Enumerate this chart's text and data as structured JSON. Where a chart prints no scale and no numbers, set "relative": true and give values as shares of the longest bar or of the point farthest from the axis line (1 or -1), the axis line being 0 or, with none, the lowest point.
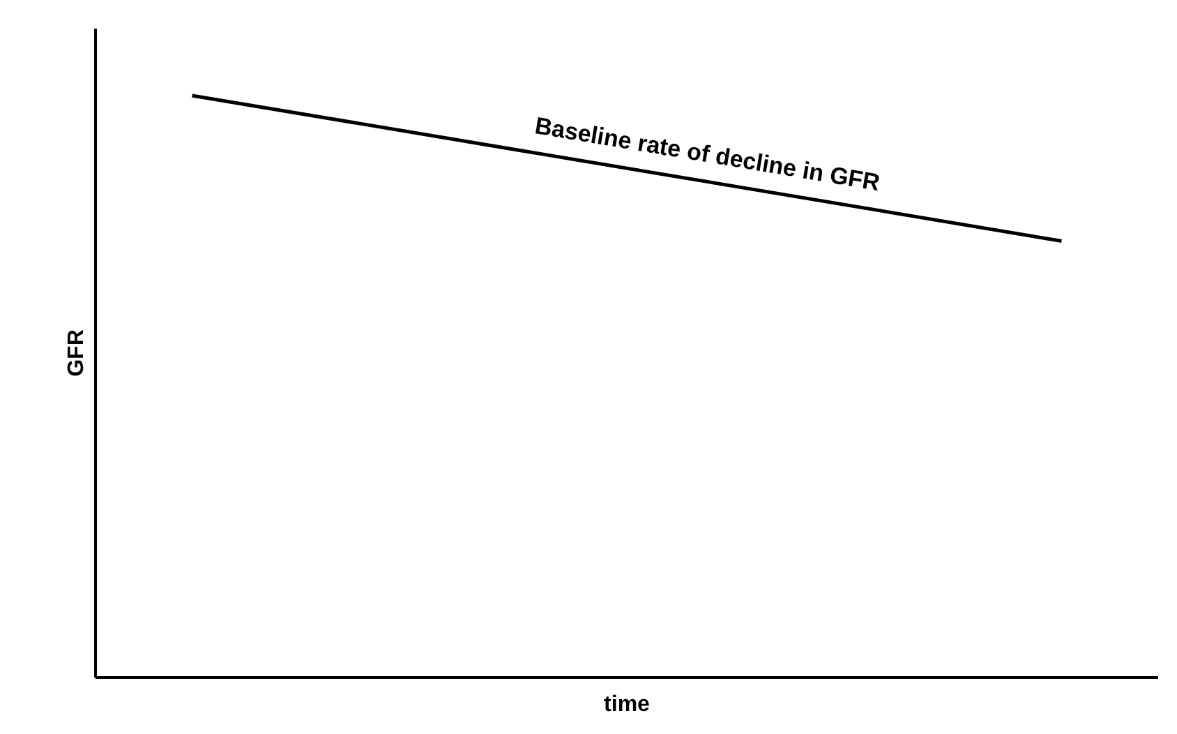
{
  "chart_data": {
    "type": "line",
    "relative": true,
    "xlabel": "time",
    "ylabel": "GFR",
    "categories": [
      null,
      null,
      null,
      null,
      null,
      null,
      null,
      null,
      null,
      null,
      null,
      null
    ],
    "series": [
      {
        "color": "#000000",
        "values": [
          null,
          1,
          null,
          null,
          null,
          null,
          null,
          null,
          null,
          null,
          0.75,
          null
        ]
      }
    ],
    "annotations": [
      "Baseline rate of decline in GFR"
    ],
    "grid": false,
    "marker": "none",
    "line_style": "solid"
  }
}
